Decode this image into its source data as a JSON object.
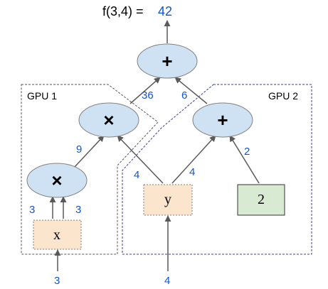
{
  "title_expr": "f(3,4) =",
  "result_value": "42",
  "gpu1_label": "GPU 1",
  "gpu2_label": "GPU 2",
  "nodes": {
    "add_top": "+",
    "mul_left": "×",
    "add_right": "+",
    "mul_bottom": "×",
    "x": "x",
    "y": "y",
    "const_two": "2"
  },
  "edges": {
    "mul_left_to_add_top": "36",
    "add_right_to_add_top": "6",
    "mul_bottom_to_mul_left": "9",
    "y_to_mul_left": "4",
    "y_to_add_right": "4",
    "const_to_add_right": "2",
    "x_to_mul_bottom_left": "3",
    "x_to_mul_bottom_right": "3",
    "x_input": "3",
    "y_input": "4"
  },
  "colors": {
    "op_node_fill": "#cfe2f3",
    "op_node_stroke": "#808080",
    "var_node_fill": "#fce5cd",
    "const_node_fill": "#d9ead3",
    "value_text": "#1155cc",
    "gpu1_border": "#555555",
    "gpu2_border": "#3c3c9c",
    "arrow": "#595959"
  }
}
